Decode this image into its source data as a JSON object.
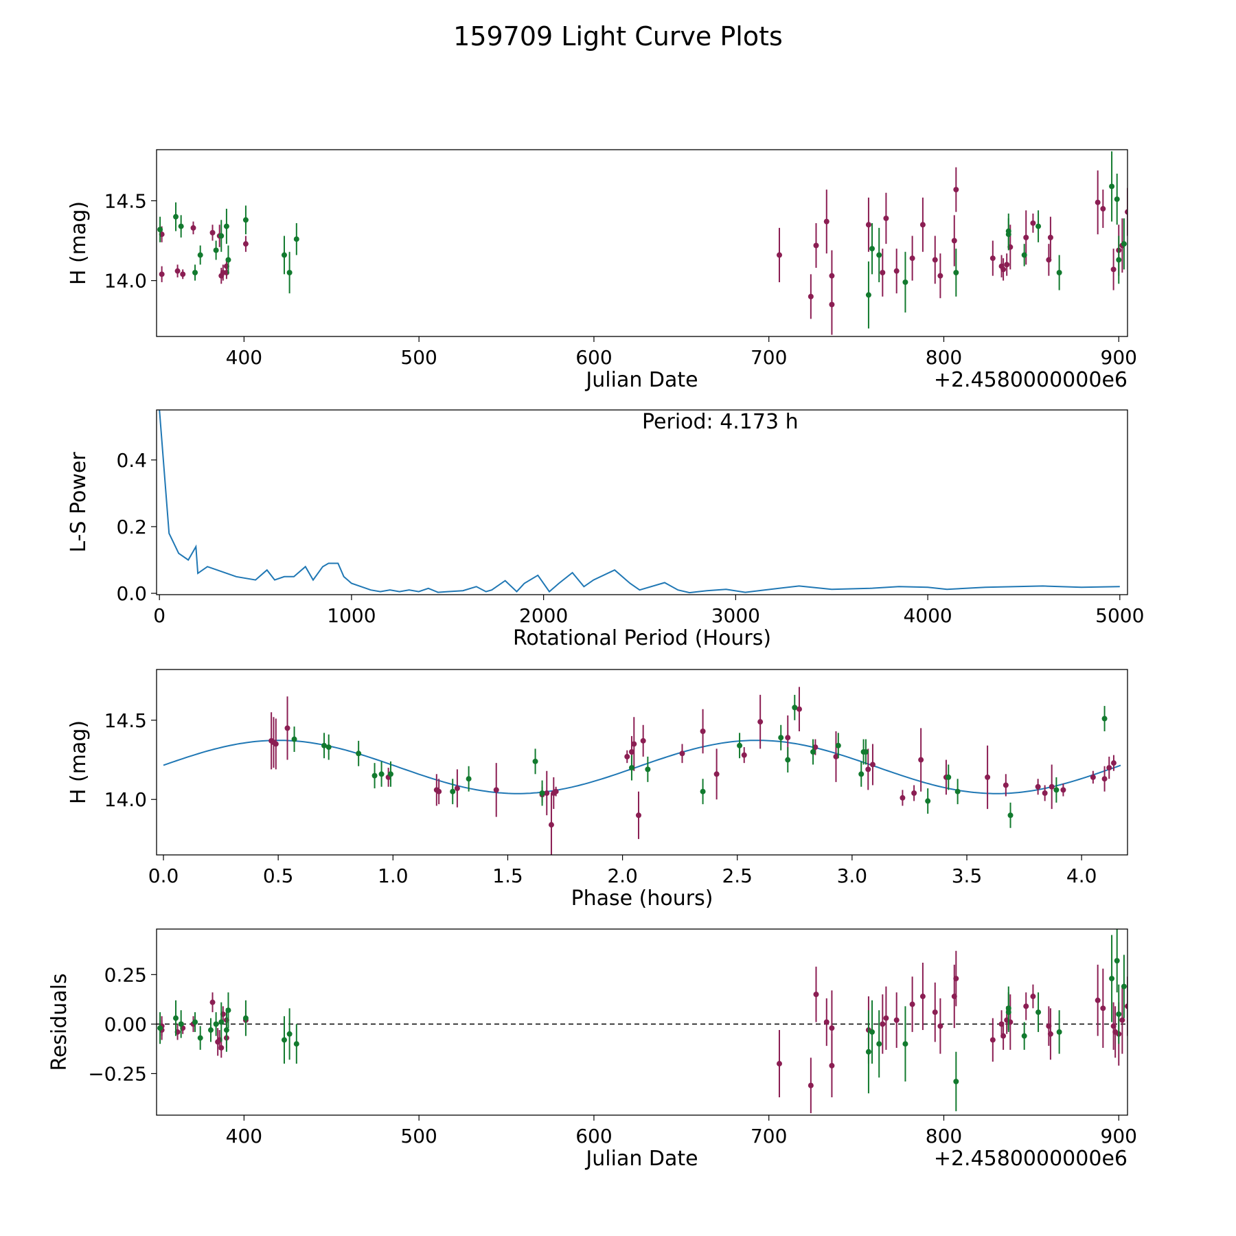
{
  "figure_title": "159709 Light Curve Plots",
  "colors": {
    "primary": "#8b1e53",
    "secondary": "#127a2e",
    "fit_line": "#1f77b4",
    "axis": "#000000"
  },
  "chart_data": [
    {
      "id": "lightcurve",
      "type": "scatter",
      "xlabel": "Julian Date",
      "ylabel": "H (mag)",
      "x_offset_label": "+2.4580000000e6",
      "xlim": [
        350,
        905
      ],
      "ylim": [
        13.65,
        14.82
      ],
      "xticks": [
        400,
        500,
        600,
        700,
        800,
        900
      ],
      "yticks": [
        14.0,
        14.5
      ],
      "series": [
        {
          "name": "primary",
          "color": "#8b1e53",
          "x": [
            353,
            353,
            362,
            365,
            371,
            382,
            386,
            387,
            388,
            390,
            390,
            401,
            706,
            724,
            727,
            733,
            736,
            736,
            757,
            765,
            767,
            773,
            782,
            788,
            795,
            798,
            806,
            807,
            828,
            833,
            834,
            836,
            838,
            847,
            851,
            860,
            861,
            888,
            891,
            897,
            900,
            902,
            905
          ],
          "y": [
            14.04,
            14.29,
            14.06,
            14.04,
            14.33,
            14.3,
            14.28,
            14.03,
            14.05,
            14.05,
            14.09,
            14.23,
            14.16,
            13.9,
            14.22,
            14.37,
            13.85,
            14.03,
            14.35,
            14.05,
            14.39,
            14.06,
            14.14,
            14.35,
            14.13,
            14.03,
            14.25,
            14.57,
            14.14,
            14.09,
            14.07,
            14.1,
            14.21,
            14.27,
            14.36,
            14.13,
            14.27,
            14.49,
            14.45,
            14.07,
            14.19,
            14.22,
            14.43
          ],
          "err": [
            0.05,
            0.05,
            0.04,
            0.03,
            0.04,
            0.05,
            0.07,
            0.05,
            0.05,
            0.04,
            0.05,
            0.05,
            0.17,
            0.14,
            0.14,
            0.2,
            0.19,
            0.16,
            0.17,
            0.15,
            0.16,
            0.14,
            0.14,
            0.17,
            0.15,
            0.14,
            0.16,
            0.14,
            0.11,
            0.07,
            0.07,
            0.07,
            0.14,
            0.17,
            0.06,
            0.1,
            0.13,
            0.2,
            0.12,
            0.13,
            0.16,
            0.17,
            0.15
          ]
        },
        {
          "name": "secondary",
          "color": "#127a2e",
          "x": [
            352,
            361,
            364,
            372,
            375,
            384,
            387,
            390,
            391,
            401,
            423,
            426,
            430,
            757,
            759,
            763,
            778,
            807,
            837,
            837,
            846,
            854,
            866,
            896,
            899,
            900,
            903
          ],
          "y": [
            14.32,
            14.4,
            14.34,
            14.05,
            14.16,
            14.19,
            14.28,
            14.34,
            14.13,
            14.38,
            14.16,
            14.05,
            14.26,
            13.91,
            14.2,
            14.16,
            13.99,
            14.05,
            14.29,
            14.31,
            14.16,
            14.34,
            14.05,
            14.59,
            14.51,
            14.13,
            14.23
          ],
          "err": [
            0.08,
            0.09,
            0.07,
            0.05,
            0.06,
            0.06,
            0.1,
            0.11,
            0.09,
            0.09,
            0.12,
            0.13,
            0.1,
            0.21,
            0.16,
            0.17,
            0.19,
            0.15,
            0.1,
            0.11,
            0.07,
            0.1,
            0.11,
            0.22,
            0.16,
            0.15,
            0.16
          ]
        }
      ]
    },
    {
      "id": "periodogram",
      "type": "line",
      "xlabel": "Rotational Period (Hours)",
      "ylabel": "L-S Power",
      "annotation": "Period: 4.173 h",
      "xlim": [
        -15,
        5040
      ],
      "ylim": [
        -0.004,
        0.55
      ],
      "xticks": [
        0,
        1000,
        2000,
        3000,
        4000,
        5000
      ],
      "yticks": [
        0.0,
        0.2,
        0.4
      ],
      "color": "#1f77b4",
      "x": [
        0,
        50,
        100,
        150,
        190,
        200,
        250,
        300,
        350,
        400,
        500,
        560,
        600,
        650,
        700,
        760,
        800,
        850,
        880,
        930,
        960,
        1000,
        1050,
        1100,
        1150,
        1200,
        1250,
        1300,
        1350,
        1400,
        1450,
        1500,
        1580,
        1650,
        1700,
        1730,
        1800,
        1860,
        1900,
        1970,
        2030,
        2080,
        2150,
        2210,
        2260,
        2370,
        2450,
        2500,
        2630,
        2700,
        2760,
        2850,
        2950,
        3050,
        3150,
        3330,
        3500,
        3700,
        3850,
        4000,
        4100,
        4300,
        4600,
        4800,
        5000
      ],
      "y": [
        0.55,
        0.18,
        0.12,
        0.1,
        0.14,
        0.06,
        0.08,
        0.07,
        0.06,
        0.05,
        0.04,
        0.07,
        0.04,
        0.05,
        0.05,
        0.08,
        0.04,
        0.08,
        0.09,
        0.09,
        0.05,
        0.03,
        0.02,
        0.01,
        0.005,
        0.01,
        0.005,
        0.01,
        0.005,
        0.015,
        0.003,
        0.005,
        0.008,
        0.02,
        0.005,
        0.01,
        0.038,
        0.005,
        0.03,
        0.054,
        0.005,
        0.03,
        0.062,
        0.02,
        0.04,
        0.07,
        0.03,
        0.01,
        0.032,
        0.01,
        0.002,
        0.008,
        0.012,
        0.003,
        0.01,
        0.022,
        0.012,
        0.015,
        0.02,
        0.018,
        0.012,
        0.018,
        0.022,
        0.018,
        0.02
      ]
    },
    {
      "id": "phased",
      "type": "scatter",
      "xlabel": "Phase (hours)",
      "ylabel": "H (mag)",
      "xlim": [
        -0.03,
        4.2
      ],
      "ylim": [
        13.65,
        14.82
      ],
      "xticks": [
        0.0,
        0.5,
        1.0,
        1.5,
        2.0,
        2.5,
        3.0,
        3.5,
        4.0
      ],
      "yticks": [
        14.0,
        14.5
      ],
      "fit": {
        "color": "#1f77b4",
        "mean": 14.205,
        "amplitude": 0.168,
        "peak_phase": 0.5,
        "period": 2.086
      },
      "series": [
        {
          "name": "primary",
          "color": "#8b1e53",
          "x": [
            0.47,
            0.48,
            0.49,
            0.54,
            0.98,
            1.19,
            1.2,
            1.28,
            1.45,
            1.65,
            1.67,
            1.69,
            1.7,
            1.71,
            2.02,
            2.04,
            2.05,
            2.07,
            2.09,
            2.26,
            2.35,
            2.41,
            2.53,
            2.6,
            2.72,
            2.77,
            2.84,
            2.93,
            3.07,
            3.09,
            3.22,
            3.27,
            3.3,
            3.41,
            3.59,
            3.67,
            3.81,
            3.84,
            3.87,
            3.92,
            4.05,
            4.1,
            4.12,
            4.14
          ],
          "y": [
            14.37,
            14.36,
            14.35,
            14.45,
            14.14,
            14.06,
            14.05,
            14.07,
            14.06,
            14.03,
            14.04,
            13.84,
            14.04,
            14.05,
            14.27,
            14.3,
            14.35,
            13.9,
            14.37,
            14.29,
            14.43,
            14.16,
            14.28,
            14.49,
            14.39,
            14.57,
            14.33,
            14.27,
            14.19,
            14.22,
            14.01,
            14.04,
            14.25,
            14.14,
            14.14,
            14.09,
            14.08,
            14.04,
            14.08,
            14.06,
            14.14,
            14.13,
            14.2,
            14.23
          ],
          "err": [
            0.18,
            0.16,
            0.16,
            0.2,
            0.06,
            0.1,
            0.08,
            0.12,
            0.17,
            0.05,
            0.14,
            0.2,
            0.1,
            0.03,
            0.04,
            0.1,
            0.17,
            0.15,
            0.1,
            0.06,
            0.14,
            0.16,
            0.05,
            0.17,
            0.14,
            0.14,
            0.05,
            0.16,
            0.13,
            0.13,
            0.05,
            0.05,
            0.2,
            0.11,
            0.2,
            0.07,
            0.05,
            0.05,
            0.14,
            0.04,
            0.04,
            0.08,
            0.07,
            0.05
          ]
        },
        {
          "name": "secondary",
          "color": "#127a2e",
          "x": [
            0.57,
            0.7,
            0.72,
            0.85,
            0.92,
            0.95,
            0.99,
            1.26,
            1.33,
            1.62,
            1.65,
            2.04,
            2.11,
            2.35,
            2.51,
            2.69,
            2.72,
            2.75,
            2.83,
            2.94,
            3.04,
            3.05,
            3.06,
            3.33,
            3.42,
            3.46,
            3.69,
            3.89,
            4.1
          ],
          "y": [
            14.38,
            14.34,
            14.33,
            14.29,
            14.15,
            14.16,
            14.16,
            14.05,
            14.13,
            14.24,
            14.04,
            14.2,
            14.19,
            14.05,
            14.34,
            14.39,
            14.25,
            14.58,
            14.3,
            14.34,
            14.16,
            14.3,
            14.3,
            13.99,
            14.14,
            14.05,
            13.9,
            14.06,
            14.51
          ]
        }
      ]
    },
    {
      "id": "residuals",
      "type": "scatter",
      "xlabel": "Julian Date",
      "ylabel": "Residuals",
      "x_offset_label": "+2.4580000000e6",
      "xlim": [
        350,
        905
      ],
      "ylim": [
        -0.46,
        0.48
      ],
      "xticks": [
        400,
        500,
        600,
        700,
        800,
        900
      ],
      "yticks": [
        0.25,
        0.0,
        -0.25
      ],
      "yticklabels": [
        "0.25",
        "0.00",
        "−0.25"
      ],
      "reference_line": 0,
      "series": [
        {
          "name": "primary",
          "color": "#8b1e53",
          "x": [
            353,
            353,
            362,
            365,
            371,
            382,
            385,
            386,
            387,
            388,
            390,
            390,
            401,
            706,
            724,
            727,
            733,
            736,
            736,
            757,
            765,
            767,
            773,
            782,
            788,
            795,
            798,
            806,
            807,
            828,
            833,
            834,
            836,
            838,
            847,
            851,
            860,
            861,
            888,
            891,
            897,
            898,
            900,
            902,
            905
          ],
          "y": [
            -0.01,
            -0.03,
            -0.04,
            -0.02,
            0.0,
            0.11,
            -0.09,
            -0.08,
            -0.12,
            0.05,
            -0.07,
            0.02,
            0.02,
            -0.2,
            -0.31,
            0.15,
            0.01,
            -0.02,
            -0.21,
            -0.03,
            0.0,
            0.03,
            0.02,
            0.1,
            0.14,
            0.06,
            -0.01,
            0.14,
            0.23,
            -0.08,
            0.0,
            -0.06,
            0.02,
            0.01,
            0.09,
            0.14,
            -0.01,
            -0.05,
            0.12,
            0.08,
            -0.01,
            -0.04,
            -0.05,
            0.02,
            0.09
          ],
          "err": [
            0.05,
            0.05,
            0.04,
            0.03,
            0.04,
            0.05,
            0.07,
            0.05,
            0.05,
            0.04,
            0.05,
            0.05,
            0.05,
            0.17,
            0.14,
            0.14,
            0.12,
            0.19,
            0.16,
            0.17,
            0.15,
            0.16,
            0.14,
            0.14,
            0.17,
            0.15,
            0.14,
            0.16,
            0.14,
            0.11,
            0.07,
            0.07,
            0.07,
            0.14,
            0.07,
            0.06,
            0.1,
            0.13,
            0.18,
            0.2,
            0.12,
            0.13,
            0.16,
            0.17,
            0.15
          ]
        },
        {
          "name": "secondary",
          "color": "#127a2e",
          "x": [
            352,
            361,
            364,
            372,
            375,
            381,
            384,
            387,
            390,
            391,
            401,
            423,
            426,
            430,
            757,
            759,
            763,
            778,
            807,
            837,
            837,
            846,
            854,
            866,
            896,
            899,
            900,
            903
          ],
          "y": [
            -0.02,
            0.03,
            0.0,
            0.01,
            -0.07,
            -0.03,
            0.0,
            0.01,
            -0.03,
            0.07,
            0.03,
            -0.08,
            -0.05,
            -0.1,
            -0.14,
            -0.04,
            -0.1,
            -0.1,
            -0.29,
            0.06,
            0.08,
            -0.06,
            0.06,
            -0.04,
            0.23,
            0.32,
            0.05,
            0.19
          ],
          "err": [
            0.08,
            0.09,
            0.07,
            0.05,
            0.06,
            0.06,
            0.06,
            0.1,
            0.11,
            0.09,
            0.09,
            0.12,
            0.13,
            0.1,
            0.21,
            0.16,
            0.17,
            0.19,
            0.15,
            0.1,
            0.11,
            0.07,
            0.1,
            0.11,
            0.22,
            0.16,
            0.15,
            0.16
          ]
        }
      ]
    }
  ]
}
